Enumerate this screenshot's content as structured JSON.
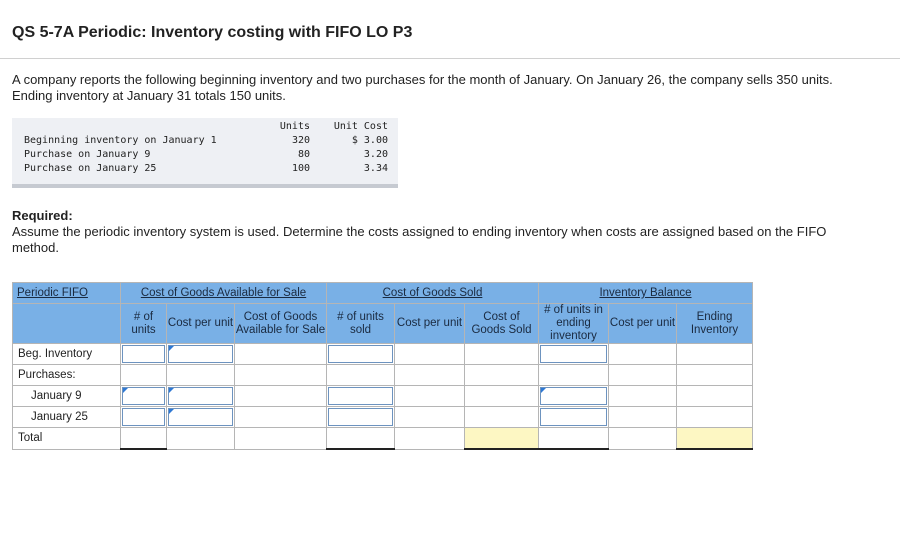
{
  "header": {
    "title": "QS 5-7A Periodic: Inventory costing with FIFO LO P3"
  },
  "intro": "A company reports the following beginning inventory and two purchases for the month of January. On January 26, the company sells 350 units. Ending inventory at January 31 totals 150 units.",
  "given": {
    "col_units": "Units",
    "col_cost": "Unit Cost",
    "rows": [
      {
        "label": "Beginning inventory on January 1",
        "units": "320",
        "cost": "$ 3.00"
      },
      {
        "label": "Purchase on January 9",
        "units": "80",
        "cost": "3.20"
      },
      {
        "label": "Purchase on January 25",
        "units": "100",
        "cost": "3.34"
      }
    ]
  },
  "required": {
    "heading": "Required:",
    "text": "Assume the periodic inventory system is used. Determine the costs assigned to ending inventory when costs are assigned based on the FIFO method."
  },
  "table": {
    "corner": "Periodic FIFO",
    "groups": {
      "cogas": "Cost of Goods Available for Sale",
      "cogs": "Cost of Goods Sold",
      "inv": "Inventory Balance"
    },
    "cols": {
      "units": "# of units",
      "cpu": "Cost per unit",
      "cogas": "Cost of Goods Available for Sale",
      "sold": "# of units sold",
      "cpu2": "Cost per unit",
      "cogs": "Cost of Goods Sold",
      "ending_units": "# of units in ending inventory",
      "cpu3": "Cost per unit",
      "ending_inv": "Ending Inventory"
    },
    "rows": {
      "beg": "Beg. Inventory",
      "purchases": "Purchases:",
      "jan9": "January 9",
      "jan25": "January 25",
      "total": "Total"
    }
  }
}
